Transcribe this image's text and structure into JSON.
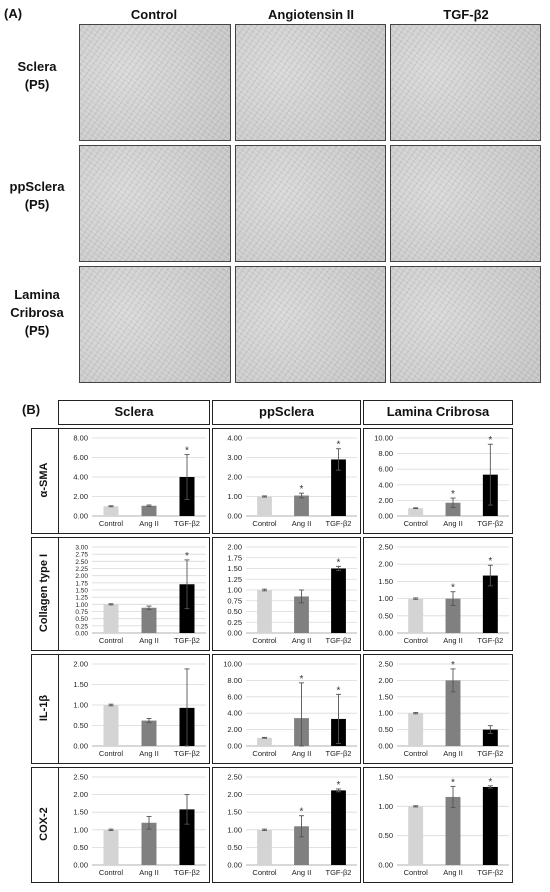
{
  "panel_a": {
    "label": "(A)",
    "columns": [
      "Control",
      "Angiotensin II",
      "TGF-β2"
    ],
    "rows": [
      {
        "line1": "Sclera",
        "line2": "(P5)",
        "line3": ""
      },
      {
        "line1": "ppSclera",
        "line2": "(P5)",
        "line3": ""
      },
      {
        "line1": "Lamina",
        "line2": "Cribrosa",
        "line3": "(P5)"
      }
    ]
  },
  "panel_b": {
    "label": "(B)",
    "columns": [
      "Sclera",
      "ppSclera",
      "Lamina Cribrosa"
    ],
    "rows": [
      "α-SMA",
      "Collagen type I",
      "IL-1β",
      "COX-2"
    ]
  },
  "colors": {
    "control": "#d4d4d4",
    "ang": "#808080",
    "tgf": "#000000",
    "grid": "#d9d9d9"
  },
  "chart_data": [
    {
      "type": "bar",
      "row": "α-SMA",
      "column": "Sclera",
      "categories": [
        "Control",
        "Ang II",
        "TGF-β2"
      ],
      "values": [
        1.0,
        1.05,
        4.0
      ],
      "errors": [
        0.05,
        0.08,
        2.3
      ],
      "significant": [
        false,
        false,
        true
      ],
      "yticks": [
        "0.00",
        "2.00",
        "4.00",
        "6.00",
        "8.00"
      ],
      "ylim": [
        0,
        8
      ]
    },
    {
      "type": "bar",
      "row": "α-SMA",
      "column": "ppSclera",
      "categories": [
        "Control",
        "Ang II",
        "TGF-β2"
      ],
      "values": [
        1.0,
        1.05,
        2.9
      ],
      "errors": [
        0.03,
        0.12,
        0.55
      ],
      "significant": [
        false,
        true,
        true
      ],
      "yticks": [
        "0.00",
        "1.00",
        "2.00",
        "3.00",
        "4.00"
      ],
      "ylim": [
        0,
        4
      ]
    },
    {
      "type": "bar",
      "row": "α-SMA",
      "column": "Lamina Cribrosa",
      "categories": [
        "Control",
        "Ang II",
        "TGF-β2"
      ],
      "values": [
        1.0,
        1.7,
        5.3
      ],
      "errors": [
        0.05,
        0.6,
        3.9
      ],
      "significant": [
        false,
        true,
        true
      ],
      "yticks": [
        "0.00",
        "2.00",
        "4.00",
        "6.00",
        "8.00",
        "10.00"
      ],
      "ylim": [
        0,
        10
      ]
    },
    {
      "type": "bar",
      "row": "Collagen type I",
      "column": "Sclera",
      "categories": [
        "Control",
        "Ang II",
        "TGF-β2"
      ],
      "values": [
        1.0,
        0.88,
        1.7
      ],
      "errors": [
        0.02,
        0.06,
        0.85
      ],
      "significant": [
        false,
        false,
        true
      ],
      "yticks": [
        "0.00",
        "0.25",
        "0.50",
        "0.75",
        "1.00",
        "1.25",
        "1.50",
        "1.75",
        "2.00",
        "2.25",
        "2.50",
        "2.75",
        "3.00"
      ],
      "ylim": [
        0,
        3
      ]
    },
    {
      "type": "bar",
      "row": "Collagen type I",
      "column": "ppSclera",
      "categories": [
        "Control",
        "Ang II",
        "TGF-β2"
      ],
      "values": [
        1.0,
        0.85,
        1.5
      ],
      "errors": [
        0.02,
        0.15,
        0.05
      ],
      "significant": [
        false,
        false,
        true
      ],
      "yticks": [
        "0.00",
        "0.25",
        "0.50",
        "0.75",
        "1.00",
        "1.25",
        "1.50",
        "1.75",
        "2.00"
      ],
      "ylim": [
        0,
        2
      ]
    },
    {
      "type": "bar",
      "row": "Collagen type I",
      "column": "Lamina Cribrosa",
      "categories": [
        "Control",
        "Ang II",
        "TGF-β2"
      ],
      "values": [
        1.0,
        1.0,
        1.67
      ],
      "errors": [
        0.02,
        0.2,
        0.3
      ],
      "significant": [
        false,
        true,
        true
      ],
      "yticks": [
        "0.00",
        "0.50",
        "1.00",
        "1.50",
        "2.00",
        "2.50"
      ],
      "ylim": [
        0,
        2.5
      ]
    },
    {
      "type": "bar",
      "row": "IL-1β",
      "column": "Sclera",
      "categories": [
        "Control",
        "Ang II",
        "TGF-β2"
      ],
      "values": [
        1.0,
        0.62,
        0.93
      ],
      "errors": [
        0.02,
        0.05,
        0.95
      ],
      "significant": [
        false,
        false,
        false
      ],
      "yticks": [
        "0.00",
        "0.50",
        "1.00",
        "1.50",
        "2.00"
      ],
      "ylim": [
        0,
        2
      ]
    },
    {
      "type": "bar",
      "row": "IL-1β",
      "column": "ppSclera",
      "categories": [
        "Control",
        "Ang II",
        "TGF-β2"
      ],
      "values": [
        1.0,
        3.4,
        3.3
      ],
      "errors": [
        0.05,
        4.3,
        3.0
      ],
      "significant": [
        false,
        true,
        true
      ],
      "yticks": [
        "0.00",
        "2.00",
        "4.00",
        "6.00",
        "8.00",
        "10.00"
      ],
      "ylim": [
        0,
        10
      ]
    },
    {
      "type": "bar",
      "row": "IL-1β",
      "column": "Lamina Cribrosa",
      "categories": [
        "Control",
        "Ang II",
        "TGF-β2"
      ],
      "values": [
        1.0,
        2.0,
        0.5
      ],
      "errors": [
        0.02,
        0.35,
        0.12
      ],
      "significant": [
        false,
        true,
        false
      ],
      "yticks": [
        "0.00",
        "0.50",
        "1.00",
        "1.50",
        "2.00",
        "2.50"
      ],
      "ylim": [
        0,
        2.5
      ]
    },
    {
      "type": "bar",
      "row": "COX-2",
      "column": "Sclera",
      "categories": [
        "Control",
        "Ang II",
        "TGF-β2"
      ],
      "values": [
        1.0,
        1.2,
        1.58
      ],
      "errors": [
        0.02,
        0.18,
        0.42
      ],
      "significant": [
        false,
        false,
        false
      ],
      "yticks": [
        "0.00",
        "0.50",
        "1.00",
        "1.50",
        "2.00",
        "2.50"
      ],
      "ylim": [
        0,
        2.5
      ]
    },
    {
      "type": "bar",
      "row": "COX-2",
      "column": "ppSclera",
      "categories": [
        "Control",
        "Ang II",
        "TGF-β2"
      ],
      "values": [
        1.0,
        1.1,
        2.12
      ],
      "errors": [
        0.02,
        0.3,
        0.04
      ],
      "significant": [
        false,
        true,
        true
      ],
      "yticks": [
        "0.00",
        "0.50",
        "1.00",
        "1.50",
        "2.00",
        "2.50"
      ],
      "ylim": [
        0,
        2.5
      ]
    },
    {
      "type": "bar",
      "row": "COX-2",
      "column": "Lamina Cribrosa",
      "categories": [
        "Control",
        "Ang II",
        "TGF-β2"
      ],
      "values": [
        1.0,
        1.16,
        1.33
      ],
      "errors": [
        0.01,
        0.18,
        0.02
      ],
      "significant": [
        false,
        true,
        true
      ],
      "yticks": [
        "0.00",
        "0.50",
        "1.00",
        "1.50"
      ],
      "ylim": [
        0,
        1.5
      ]
    }
  ]
}
